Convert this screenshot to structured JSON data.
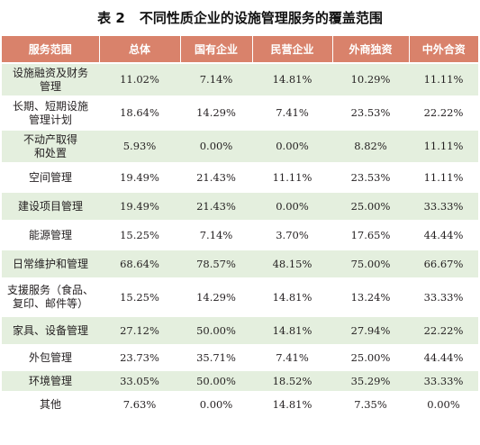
{
  "title": {
    "number": "表 2",
    "text": "不同性质企业的设施管理服务的覆盖范围"
  },
  "header": {
    "category": "服务范围",
    "total": "总体",
    "soe": "国有企业",
    "private": "民营企业",
    "foreign": "外商独资",
    "jv": "中外合资"
  },
  "rows": [
    {
      "category": [
        "设施融资及财务",
        "管理"
      ],
      "values": [
        "11.02%",
        "7.14%",
        "14.81%",
        "10.29%",
        "11.11%"
      ]
    },
    {
      "category": [
        "长期、短期设施",
        "管理计划"
      ],
      "values": [
        "18.64%",
        "14.29%",
        "7.41%",
        "23.53%",
        "22.22%"
      ]
    },
    {
      "category": [
        "不动产取得",
        "和处置"
      ],
      "values": [
        "5.93%",
        "0.00%",
        "0.00%",
        "8.82%",
        "11.11%"
      ]
    },
    {
      "category": [
        "空间管理"
      ],
      "values": [
        "19.49%",
        "21.43%",
        "11.11%",
        "23.53%",
        "11.11%"
      ]
    },
    {
      "category": [
        "建设项目管理"
      ],
      "values": [
        "19.49%",
        "21.43%",
        "0.00%",
        "25.00%",
        "33.33%"
      ]
    },
    {
      "category": [
        "能源管理"
      ],
      "values": [
        "15.25%",
        "7.14%",
        "3.70%",
        "17.65%",
        "44.44%"
      ]
    },
    {
      "category": [
        "日常维护和管理"
      ],
      "values": [
        "68.64%",
        "78.57%",
        "48.15%",
        "75.00%",
        "66.67%"
      ]
    },
    {
      "category": [
        "支援服务（食品、",
        "复印、邮件等）"
      ],
      "values": [
        "15.25%",
        "14.29%",
        "14.81%",
        "13.24%",
        "33.33%"
      ]
    },
    {
      "category": [
        "家具、设备管理"
      ],
      "values": [
        "27.12%",
        "50.00%",
        "14.81%",
        "27.94%",
        "22.22%"
      ]
    },
    {
      "category": [
        "外包管理"
      ],
      "values": [
        "23.73%",
        "35.71%",
        "7.41%",
        "25.00%",
        "44.44%"
      ]
    },
    {
      "category": [
        "环境管理"
      ],
      "values": [
        "33.05%",
        "50.00%",
        "18.52%",
        "35.29%",
        "33.33%"
      ]
    },
    {
      "category": [
        "其他"
      ],
      "values": [
        "7.63%",
        "0.00%",
        "14.81%",
        "7.35%",
        "0.00%"
      ]
    }
  ],
  "colors": {
    "header_bg": "#d9826b",
    "stripe_bg": "#e4efde",
    "header_text": "#ffffff"
  }
}
